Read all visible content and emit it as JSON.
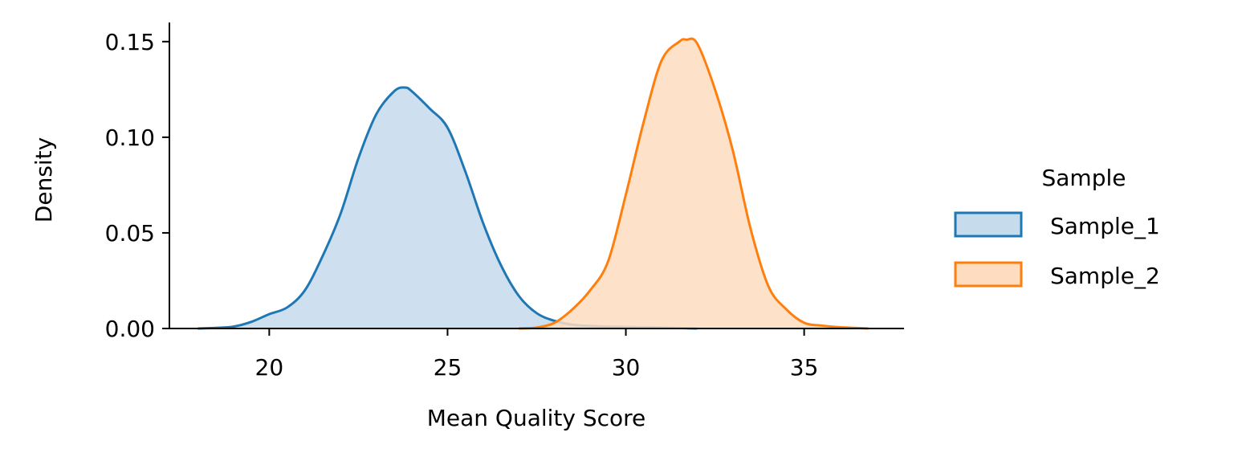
{
  "chart_data": {
    "type": "area",
    "title": "",
    "xlabel": "Mean Quality Score",
    "ylabel": "Density",
    "xlim": [
      17.2,
      37.8
    ],
    "ylim": [
      0,
      0.16
    ],
    "xticks": [
      20,
      25,
      30,
      35
    ],
    "yticks": [
      "0.00",
      "0.05",
      "0.10",
      "0.15"
    ],
    "grid": false,
    "legend": {
      "title": "Sample",
      "placement": "right"
    },
    "series": [
      {
        "name": "Sample_1",
        "color": "#1f77b4",
        "fill": "#c6dbec",
        "x": [
          18.0,
          18.5,
          19.0,
          19.5,
          20.0,
          20.5,
          21.0,
          21.5,
          22.0,
          22.5,
          23.0,
          23.5,
          23.8,
          24.0,
          24.5,
          25.0,
          25.5,
          26.0,
          26.5,
          27.0,
          27.5,
          28.0,
          28.5,
          29.0,
          29.5,
          30.0,
          31.0,
          32.0
        ],
        "y": [
          0.0,
          0.0003,
          0.001,
          0.0035,
          0.0075,
          0.011,
          0.02,
          0.038,
          0.06,
          0.089,
          0.112,
          0.124,
          0.126,
          0.124,
          0.115,
          0.105,
          0.082,
          0.055,
          0.033,
          0.017,
          0.008,
          0.004,
          0.002,
          0.0013,
          0.001,
          0.0008,
          0.0005,
          0.0
        ]
      },
      {
        "name": "Sample_2",
        "color": "#ff7f0e",
        "fill": "#fedcbf",
        "x": [
          27.0,
          27.5,
          28.0,
          28.5,
          29.0,
          29.5,
          30.0,
          30.5,
          31.0,
          31.5,
          31.7,
          32.0,
          32.5,
          33.0,
          33.5,
          34.0,
          34.5,
          35.0,
          35.5,
          36.0,
          36.8
        ],
        "y": [
          0.0,
          0.0005,
          0.003,
          0.01,
          0.02,
          0.035,
          0.07,
          0.108,
          0.14,
          0.15,
          0.151,
          0.149,
          0.125,
          0.093,
          0.052,
          0.022,
          0.01,
          0.003,
          0.0015,
          0.0007,
          0.0
        ]
      }
    ]
  }
}
